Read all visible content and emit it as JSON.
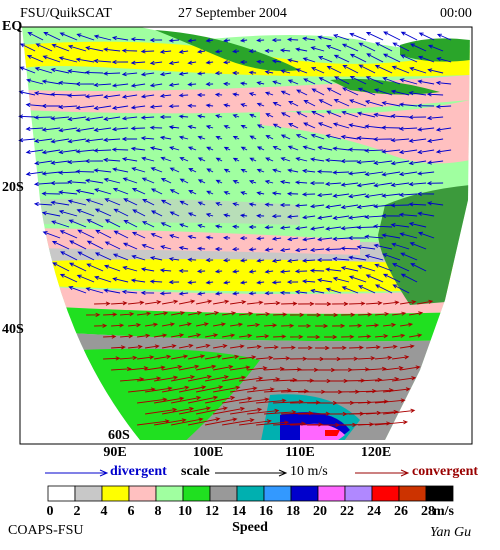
{
  "header": {
    "title": "FSU/QuikSCAT",
    "date": "27 September 2004",
    "time": "00:00"
  },
  "map": {
    "lat_labels": [
      "EQ",
      "20S",
      "40S",
      "60S"
    ],
    "lon_labels": [
      "90E",
      "100E",
      "110E",
      "120E"
    ]
  },
  "legend": {
    "divergent": "divergent",
    "scale": "scale",
    "scale_value": "10 m/s",
    "convergent": "convergent"
  },
  "colorbar": {
    "ticks": [
      0,
      2,
      4,
      6,
      8,
      10,
      12,
      14,
      16,
      18,
      20,
      22,
      24,
      26,
      28
    ],
    "unit": "m/s",
    "label": "Speed",
    "colors": [
      "#ffffff",
      "#c8c8c8",
      "#ffff00",
      "#ffc0c0",
      "#a0ffa0",
      "#20e020",
      "#999999",
      "#00b0b0",
      "#3399ff",
      "#0000cc",
      "#ff66ff",
      "#b088ff",
      "#ff0000",
      "#cc3300",
      "#000000"
    ]
  },
  "footer": {
    "org": "COAPS-FSU",
    "author": "Yan Gu"
  }
}
